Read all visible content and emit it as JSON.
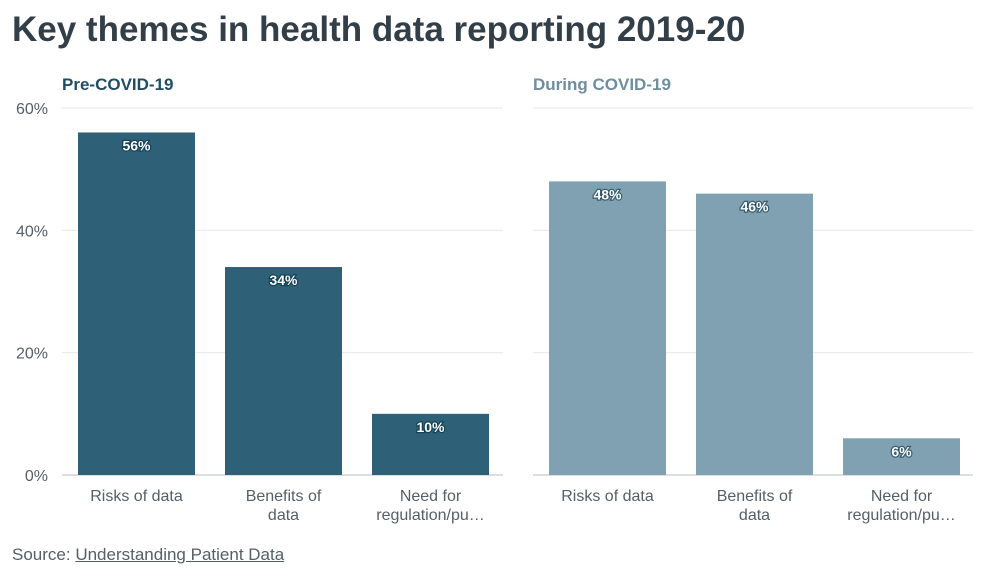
{
  "title": "Key themes in health data reporting 2019-20",
  "source": {
    "prefix": "Source: ",
    "link_text": "Understanding Patient Data"
  },
  "chart_data": [
    {
      "type": "bar",
      "title": "Pre-COVID-19",
      "color": "#2e6178",
      "title_color": "#1f4e66",
      "categories": [
        "Risks of data",
        "Benefits of data",
        "Need for regulation/pu…"
      ],
      "category_lines": [
        [
          "Risks of data"
        ],
        [
          "Benefits of",
          "data"
        ],
        [
          "Need for",
          "regulation/pu…"
        ]
      ],
      "values": [
        56,
        34,
        10
      ],
      "data_labels": [
        "56%",
        "34%",
        "10%"
      ],
      "xlabel": "",
      "ylabel": "",
      "ylim": [
        0,
        60
      ],
      "yticks": [
        0,
        20,
        40,
        60
      ],
      "ytick_labels": [
        "0%",
        "20%",
        "40%",
        "60%"
      ],
      "grid": true
    },
    {
      "type": "bar",
      "title": "During COVID-19",
      "color": "#7fa1b1",
      "title_color": "#6e8fa0",
      "categories": [
        "Risks of data",
        "Benefits of data",
        "Need for regulation/pu…"
      ],
      "category_lines": [
        [
          "Risks of data"
        ],
        [
          "Benefits of",
          "data"
        ],
        [
          "Need for",
          "regulation/pu…"
        ]
      ],
      "values": [
        48,
        46,
        6
      ],
      "data_labels": [
        "48%",
        "46%",
        "6%"
      ],
      "xlabel": "",
      "ylabel": "",
      "ylim": [
        0,
        60
      ],
      "yticks": [
        0,
        20,
        40,
        60
      ],
      "grid": true
    }
  ]
}
